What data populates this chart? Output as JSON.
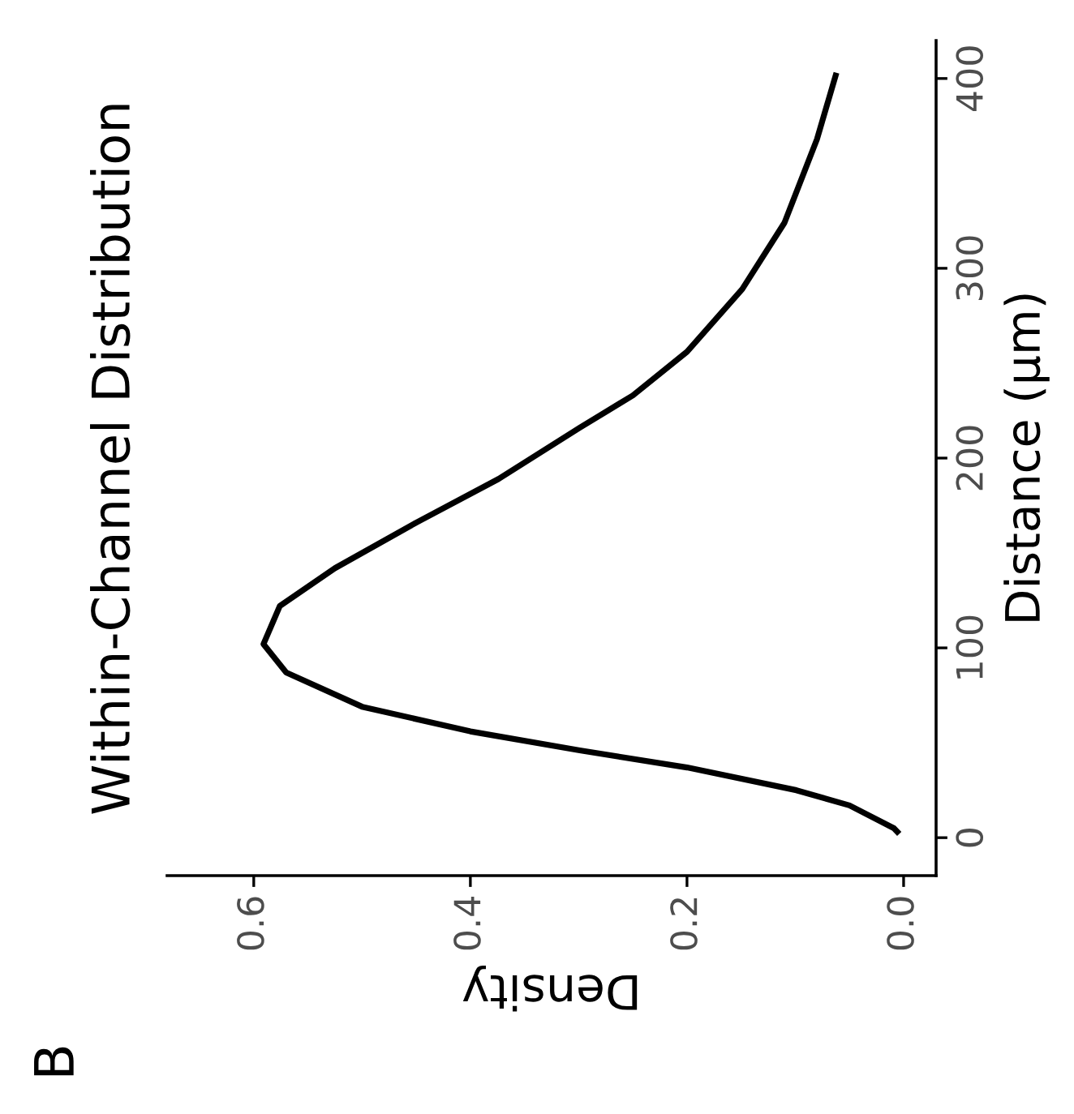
{
  "chart_data": {
    "type": "line",
    "title": "Within-Channel Distribution",
    "xlabel": "Density",
    "ylabel": "Distance (µm)",
    "annotations": [
      "B"
    ],
    "x": [
      0.004,
      0.009,
      0.05,
      0.099,
      0.2,
      0.299,
      0.4,
      0.5,
      0.57,
      0.591,
      0.576,
      0.525,
      0.45,
      0.374,
      0.299,
      0.25,
      0.2,
      0.149,
      0.11,
      0.08,
      0.062
    ],
    "series": [
      {
        "color": "#000000",
        "values": [
          2,
          5,
          17,
          25,
          37,
          46,
          56,
          69,
          87,
          102,
          122,
          142,
          166,
          189,
          216,
          233,
          256,
          289,
          324,
          368,
          403
        ]
      }
    ],
    "xlim": [
      0.68,
      -0.03
    ],
    "xticks": [
      {
        "value": 0.0,
        "label": "0.0"
      },
      0.2,
      0.4,
      0.6
    ],
    "ylim": [
      -20,
      420
    ],
    "yticks": [
      0,
      100,
      200,
      300,
      400
    ],
    "grid": false,
    "line_style": "solid",
    "marker": "none"
  }
}
